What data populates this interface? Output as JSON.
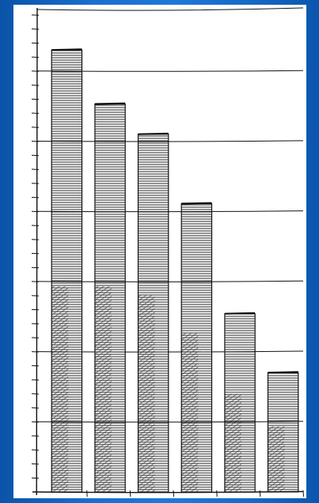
{
  "chart_data": {
    "type": "bar",
    "categories": [
      "",
      "",
      "",
      "",
      "",
      ""
    ],
    "values": [
      630,
      553,
      510,
      411,
      254,
      170
    ],
    "ylim": [
      0,
      690
    ],
    "grid": true,
    "title": "",
    "xlabel": "",
    "ylabel": "",
    "style": "hand-drawn hatched ink"
  },
  "colors": {
    "background": "#1a6fcf",
    "panel": "#ffffff",
    "ink": "#111111"
  }
}
